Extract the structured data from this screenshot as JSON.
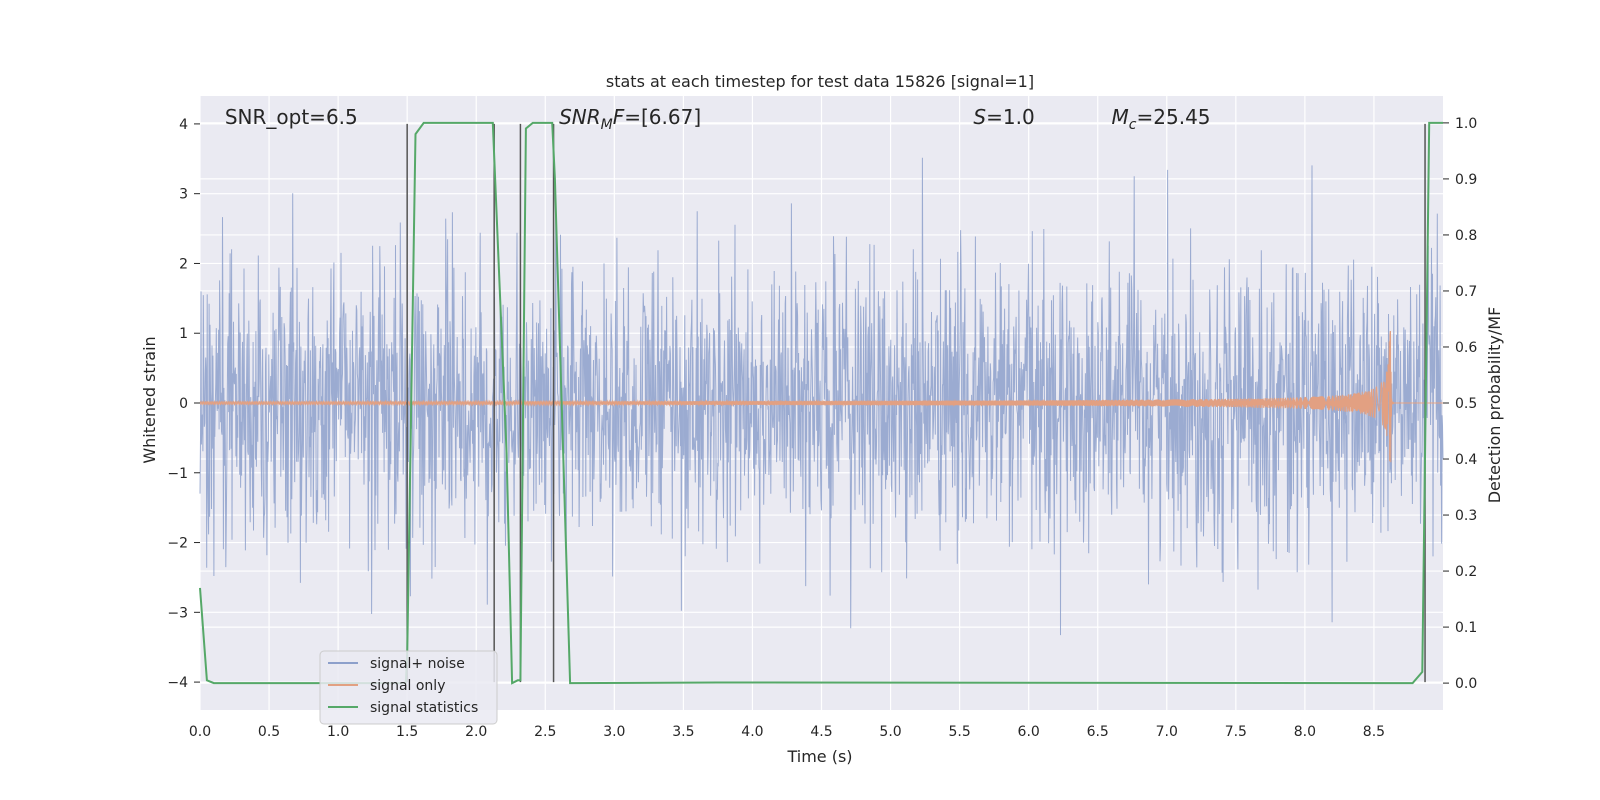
{
  "chart_data": {
    "type": "line",
    "title": "stats at each timestep for test data 15826 [signal=1]",
    "xlabel": "Time (s)",
    "ylabel": "Whitened strain",
    "y2label": "Detection probability/MF",
    "xlim": [
      0,
      9.0
    ],
    "ylim": [
      -4.4,
      4.4
    ],
    "y2lim": [
      -0.048,
      1.048
    ],
    "xticks": [
      0.0,
      0.5,
      1.0,
      1.5,
      2.0,
      2.5,
      3.0,
      3.5,
      4.0,
      4.5,
      5.0,
      5.5,
      6.0,
      6.5,
      7.0,
      7.5,
      8.0,
      8.5
    ],
    "xtick_labels": [
      "0.0",
      "0.5",
      "1.0",
      "1.5",
      "2.0",
      "2.5",
      "3.0",
      "3.5",
      "4.0",
      "4.5",
      "5.0",
      "5.5",
      "6.0",
      "6.5",
      "7.0",
      "7.5",
      "8.0",
      "8.5"
    ],
    "yticks": [
      -4,
      -3,
      -2,
      -1,
      0,
      1,
      2,
      3,
      4
    ],
    "ytick_labels": [
      "−4",
      "−3",
      "−2",
      "−1",
      "0",
      "1",
      "2",
      "3",
      "4"
    ],
    "y2ticks": [
      0.0,
      0.1,
      0.2,
      0.3,
      0.4,
      0.5,
      0.6,
      0.7,
      0.8,
      0.9,
      1.0
    ],
    "y2tick_labels": [
      "0.0",
      "0.1",
      "0.2",
      "0.3",
      "0.4",
      "0.5",
      "0.6",
      "0.7",
      "0.8",
      "0.9",
      "1.0"
    ],
    "grid": true,
    "legend_position": "lower-left",
    "series": [
      {
        "name": "signal+ noise",
        "color": "#8da0cb",
        "kind": "noise",
        "noise_sigma": 1.0,
        "noise_peak": 4.0
      },
      {
        "name": "signal only",
        "color": "#e2a082",
        "kind": "chirp",
        "merger_time": 8.62,
        "peak_amplitude": 1.4
      },
      {
        "name": "signal statistics",
        "color": "#55a868",
        "axis": "right",
        "x": [
          0.0,
          0.05,
          0.1,
          1.49,
          1.5,
          1.56,
          1.62,
          2.12,
          2.22,
          2.26,
          2.3,
          2.32,
          2.36,
          2.41,
          2.55,
          2.57,
          2.68,
          3.75,
          8.78,
          8.85,
          8.9,
          9.0
        ],
        "y": [
          0.17,
          0.005,
          0.0,
          0.0,
          0.05,
          0.98,
          1.0,
          1.0,
          0.41,
          0.0,
          0.005,
          0.005,
          0.99,
          1.0,
          1.0,
          0.9,
          0.0,
          0.001,
          0.0,
          0.02,
          1.0,
          1.0
        ]
      }
    ],
    "vlines": [
      1.5,
      2.13,
      2.32,
      2.56,
      8.87
    ],
    "vline_color": "#555555",
    "annotations": [
      {
        "text": "SNR_opt=6.5",
        "x": 0.18,
        "y": 4.1,
        "italic": false
      },
      {
        "text": "SNR",
        "sub": "M",
        "rest": "F=[6.67]",
        "x": 2.6,
        "y": 4.1,
        "italic": true
      },
      {
        "text": "S",
        "sub": "",
        "rest": "=1.0",
        "x": 5.6,
        "y": 4.1,
        "italic": true
      },
      {
        "text": "M",
        "sub": "c",
        "rest": "=25.45",
        "x": 6.6,
        "y": 4.1,
        "italic": true
      }
    ],
    "colors": {
      "plot_background": "#eaeaf2",
      "grid": "#ffffff",
      "text": "#262626"
    }
  }
}
